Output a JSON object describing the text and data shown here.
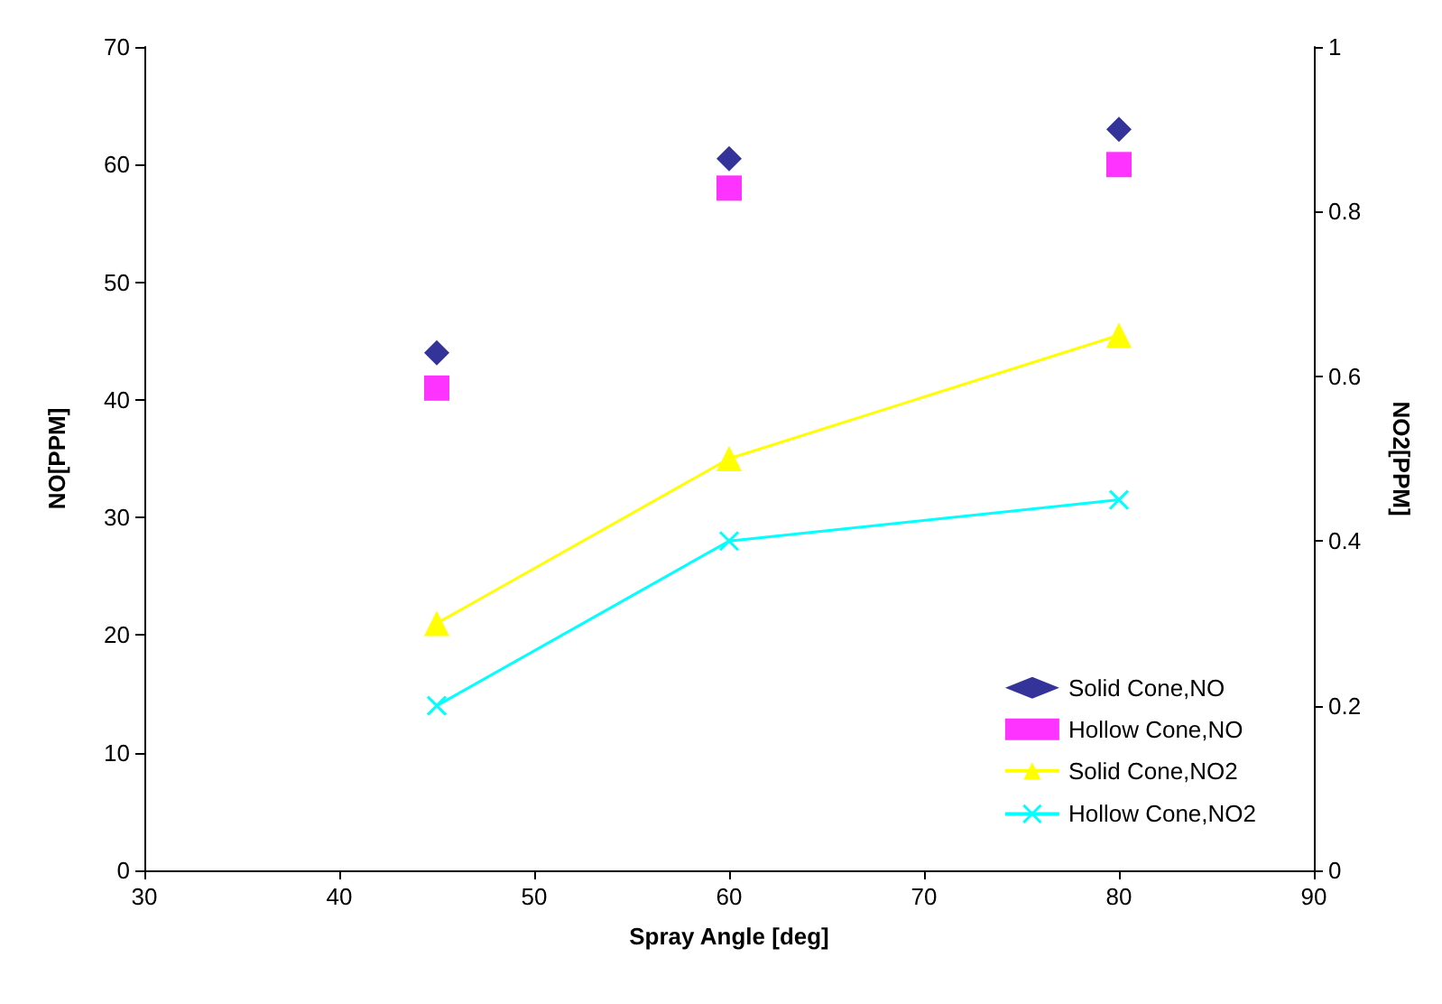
{
  "chart_data": {
    "type": "scatter",
    "xlabel": "Spray Angle [deg]",
    "ylabel": "NO[PPM]",
    "y2label": "NO2[PPM]",
    "x": [
      45,
      60,
      80
    ],
    "series": [
      {
        "name": "Solid Cone,NO",
        "marker": "diamond",
        "color": "#000080",
        "values": [
          44,
          60.5,
          63
        ]
      },
      {
        "name": "Hollow Cone,NO",
        "marker": "square",
        "color": "#ff00ff",
        "values": [
          41,
          58,
          60
        ]
      },
      {
        "name": "Solid Cone,NO2",
        "type": "line",
        "marker": "triangle",
        "color": "#ffff00",
        "axis": "y2",
        "values": [
          0.3,
          0.5,
          0.65
        ]
      },
      {
        "name": "Hollow Cone,NO2",
        "type": "line",
        "marker": "cross",
        "color": "#00ffff",
        "axis": "y2",
        "values": [
          0.2,
          0.4,
          0.45
        ]
      }
    ],
    "xlim": [
      30,
      90
    ],
    "xticks": [
      30,
      40,
      50,
      60,
      70,
      80,
      90
    ],
    "ylim": [
      0,
      70
    ],
    "yticks": [
      0,
      10,
      20,
      30,
      40,
      50,
      60,
      70
    ],
    "y2lim": [
      0,
      1
    ],
    "y2ticks": [
      0,
      0.2,
      0.4,
      0.6,
      0.8,
      1
    ],
    "grid": false,
    "legend": "bottom right"
  }
}
